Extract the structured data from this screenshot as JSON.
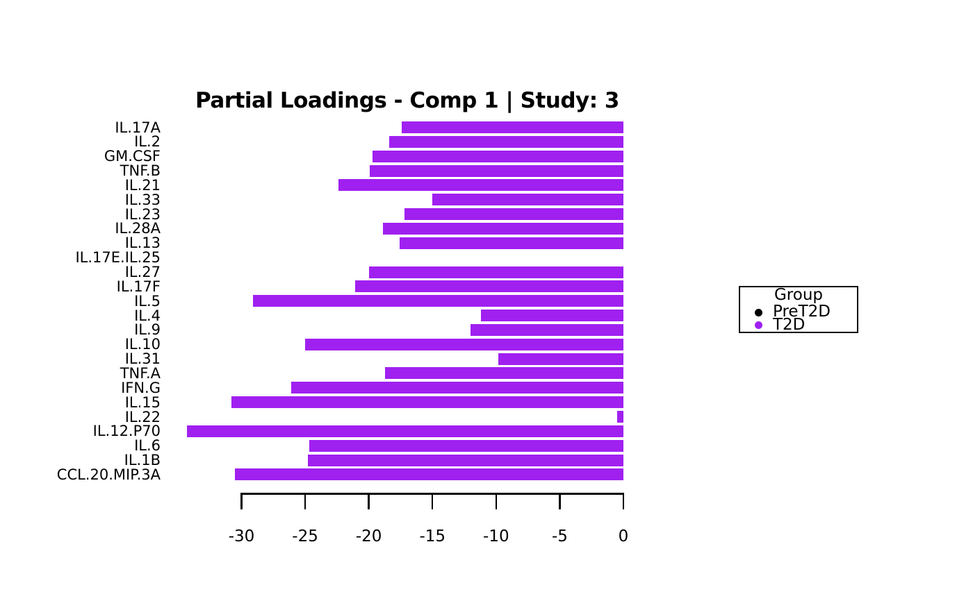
{
  "title": "Partial Loadings - Comp 1 | Study: 3",
  "chart_data": {
    "type": "bar",
    "orientation": "horizontal",
    "title": "Partial Loadings - Comp 1 | Study: 3",
    "xlabel": "",
    "ylabel": "",
    "grid": false,
    "bar_color": "#A020F0",
    "bar_color_name": "purple",
    "xlim": [
      -35,
      0
    ],
    "x_ticks": [
      -30,
      -25,
      -20,
      -15,
      -10,
      -5,
      0
    ],
    "x_tick_labels": [
      "-30",
      "-25",
      "-20",
      "-15",
      "-10",
      "-5",
      "0"
    ],
    "categories_top_to_bottom": [
      "IL.17A",
      "IL.2",
      "GM.CSF",
      "TNF.B",
      "IL.21",
      "IL.33",
      "IL.23",
      "IL.28A",
      "IL.13",
      "IL.17E.IL.25",
      "IL.27",
      "IL.17F",
      "IL.5",
      "IL.4",
      "IL.9",
      "IL.10",
      "IL.31",
      "TNF.A",
      "IFN.G",
      "IL.15",
      "IL.22",
      "IL.12.P70",
      "IL.6",
      "IL.1B",
      "CCL.20.MIP.3A"
    ],
    "values": [
      -17.4,
      -18.4,
      -19.7,
      -19.9,
      -22.4,
      -15.0,
      -17.2,
      -18.9,
      -17.6,
      0,
      -20.0,
      -21.1,
      -29.1,
      -11.2,
      -12.0,
      -25.0,
      -9.8,
      -18.7,
      -26.1,
      -30.8,
      -0.5,
      -34.3,
      -24.7,
      -24.8,
      -30.5
    ],
    "legend_position": "right"
  },
  "legend": {
    "title": "Group",
    "entries": [
      {
        "label": "PreT2D",
        "color": "#000000"
      },
      {
        "label": "T2D",
        "color": "#A020F0"
      }
    ]
  }
}
